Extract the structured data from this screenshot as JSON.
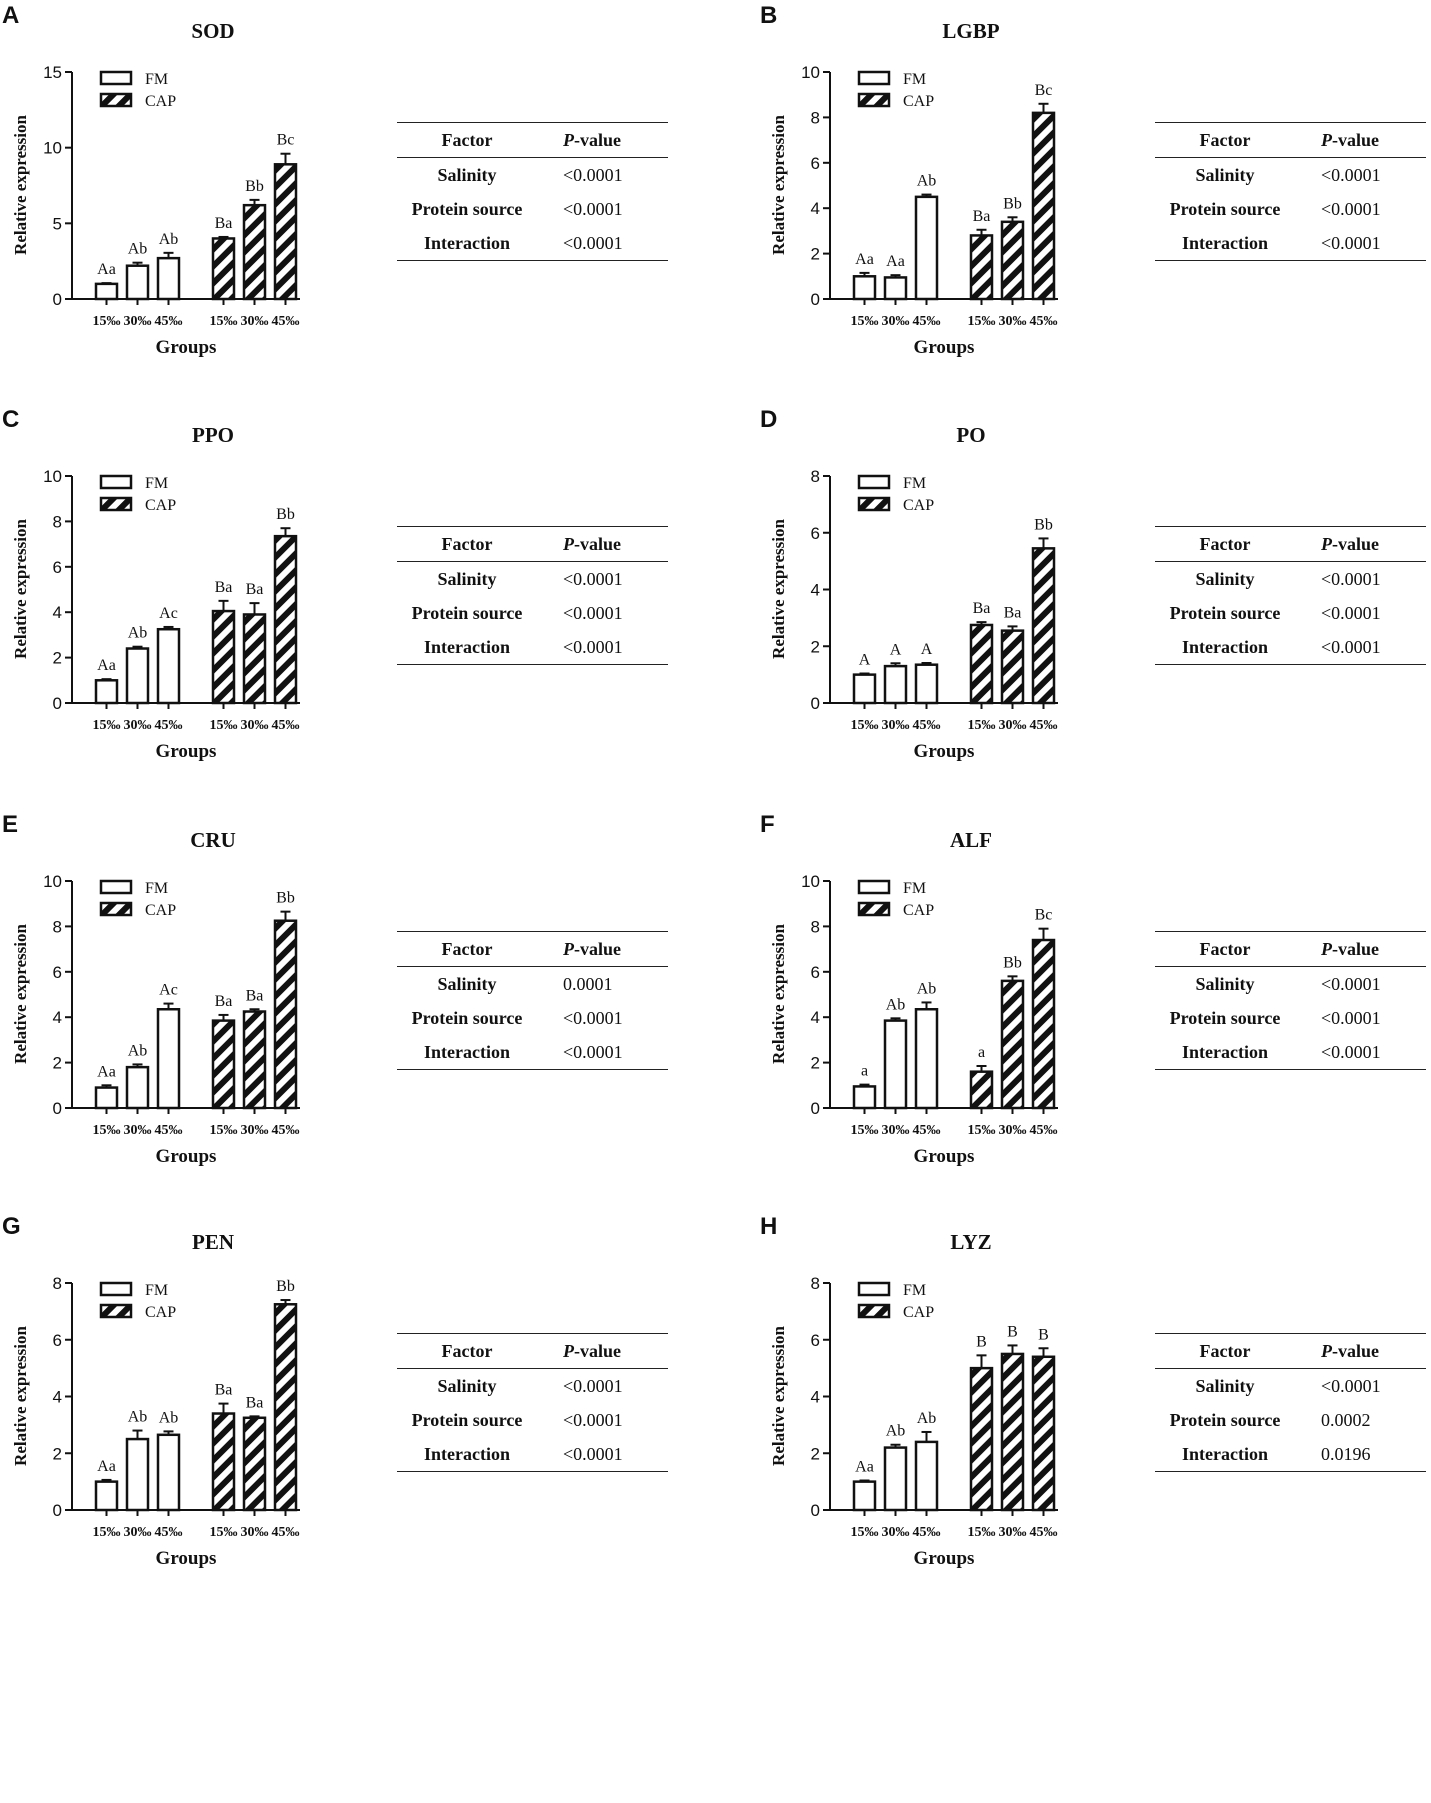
{
  "charts": [
    {
      "letter": "A",
      "title": "SOD",
      "ymax": 15,
      "yticks": [
        0,
        5,
        10,
        15
      ],
      "chart_data": {
        "type": "bar",
        "title": "SOD",
        "xlabel": "Groups",
        "ylabel": "Relative expression",
        "ylim": [
          0,
          15
        ],
        "categories": [
          "15‰",
          "30‰",
          "45‰"
        ],
        "series": [
          {
            "name": "FM",
            "values": [
              1.0,
              2.2,
              2.7
            ],
            "errors": [
              0.05,
              0.2,
              0.35
            ],
            "labels": [
              "Aa",
              "Ab",
              "Ab"
            ]
          },
          {
            "name": "CAP",
            "values": [
              4.0,
              6.2,
              8.9
            ],
            "errors": [
              0.1,
              0.35,
              0.7
            ],
            "labels": [
              "Ba",
              "Bb",
              "Bc"
            ]
          }
        ]
      },
      "table": {
        "h1": "Factor",
        "h2_italic": "P",
        "h2_rest": "-value",
        "rows": [
          {
            "factor": "Salinity",
            "p": "<0.0001"
          },
          {
            "factor": "Protein source",
            "p": "<0.0001"
          },
          {
            "factor": "Interaction",
            "p": "<0.0001"
          }
        ]
      }
    },
    {
      "letter": "B",
      "title": "LGBP",
      "ymax": 10,
      "yticks": [
        0,
        2,
        4,
        6,
        8,
        10
      ],
      "chart_data": {
        "type": "bar",
        "title": "LGBP",
        "xlabel": "Groups",
        "ylabel": "Relative expression",
        "ylim": [
          0,
          10
        ],
        "categories": [
          "15‰",
          "30‰",
          "45‰"
        ],
        "series": [
          {
            "name": "FM",
            "values": [
              1.0,
              0.95,
              4.5
            ],
            "errors": [
              0.15,
              0.1,
              0.1
            ],
            "labels": [
              "Aa",
              "Aa",
              "Ab"
            ]
          },
          {
            "name": "CAP",
            "values": [
              2.8,
              3.4,
              8.2
            ],
            "errors": [
              0.25,
              0.2,
              0.4
            ],
            "labels": [
              "Ba",
              "Bb",
              "Bc"
            ]
          }
        ]
      },
      "table": {
        "h1": "Factor",
        "h2_italic": "P",
        "h2_rest": "-value",
        "rows": [
          {
            "factor": "Salinity",
            "p": "<0.0001"
          },
          {
            "factor": "Protein source",
            "p": "<0.0001"
          },
          {
            "factor": "Interaction",
            "p": "<0.0001"
          }
        ]
      }
    },
    {
      "letter": "C",
      "title": "PPO",
      "ymax": 10,
      "yticks": [
        0,
        2,
        4,
        6,
        8,
        10
      ],
      "chart_data": {
        "type": "bar",
        "title": "PPO",
        "xlabel": "Groups",
        "ylabel": "Relative expression",
        "ylim": [
          0,
          10
        ],
        "categories": [
          "15‰",
          "30‰",
          "45‰"
        ],
        "series": [
          {
            "name": "FM",
            "values": [
              1.0,
              2.4,
              3.25
            ],
            "errors": [
              0.05,
              0.08,
              0.1
            ],
            "labels": [
              "Aa",
              "Ab",
              "Ac"
            ]
          },
          {
            "name": "CAP",
            "values": [
              4.05,
              3.9,
              7.35
            ],
            "errors": [
              0.45,
              0.5,
              0.35
            ],
            "labels": [
              "Ba",
              "Ba",
              "Bb"
            ]
          }
        ]
      },
      "table": {
        "h1": "Factor",
        "h2_italic": "P",
        "h2_rest": "-value",
        "rows": [
          {
            "factor": "Salinity",
            "p": "<0.0001"
          },
          {
            "factor": "Protein source",
            "p": "<0.0001"
          },
          {
            "factor": "Interaction",
            "p": "<0.0001"
          }
        ]
      }
    },
    {
      "letter": "D",
      "title": "PO",
      "ymax": 8,
      "yticks": [
        0,
        2,
        4,
        6,
        8
      ],
      "chart_data": {
        "type": "bar",
        "title": "PO",
        "xlabel": "Groups",
        "ylabel": "Relative expression",
        "ylim": [
          0,
          8
        ],
        "categories": [
          "15‰",
          "30‰",
          "45‰"
        ],
        "series": [
          {
            "name": "FM",
            "values": [
              1.0,
              1.3,
              1.35
            ],
            "errors": [
              0.04,
              0.1,
              0.06
            ],
            "labels": [
              "A",
              "A",
              "A"
            ]
          },
          {
            "name": "CAP",
            "values": [
              2.75,
              2.55,
              5.45
            ],
            "errors": [
              0.1,
              0.15,
              0.35
            ],
            "labels": [
              "Ba",
              "Ba",
              "Bb"
            ]
          }
        ]
      },
      "table": {
        "h1": "Factor",
        "h2_italic": "P",
        "h2_rest": "-value",
        "rows": [
          {
            "factor": "Salinity",
            "p": "<0.0001"
          },
          {
            "factor": "Protein source",
            "p": "<0.0001"
          },
          {
            "factor": "Interaction",
            "p": "<0.0001"
          }
        ]
      }
    },
    {
      "letter": "E",
      "title": "CRU",
      "ymax": 10,
      "yticks": [
        0,
        2,
        4,
        6,
        8,
        10
      ],
      "chart_data": {
        "type": "bar",
        "title": "CRU",
        "xlabel": "Groups",
        "ylabel": "Relative expression",
        "ylim": [
          0,
          10
        ],
        "categories": [
          "15‰",
          "30‰",
          "45‰"
        ],
        "series": [
          {
            "name": "FM",
            "values": [
              0.9,
              1.8,
              4.35
            ],
            "errors": [
              0.1,
              0.12,
              0.25
            ],
            "labels": [
              "Aa",
              "Ab",
              "Ac"
            ]
          },
          {
            "name": "CAP",
            "values": [
              3.85,
              4.25,
              8.25
            ],
            "errors": [
              0.25,
              0.1,
              0.4
            ],
            "labels": [
              "Ba",
              "Ba",
              "Bb"
            ]
          }
        ]
      },
      "table": {
        "h1": "Factor",
        "h2_italic": "P",
        "h2_rest": "-value",
        "rows": [
          {
            "factor": "Salinity",
            "p": "0.0001"
          },
          {
            "factor": "Protein source",
            "p": "<0.0001"
          },
          {
            "factor": "Interaction",
            "p": "<0.0001"
          }
        ]
      }
    },
    {
      "letter": "F",
      "title": "ALF",
      "ymax": 10,
      "yticks": [
        0,
        2,
        4,
        6,
        8,
        10
      ],
      "chart_data": {
        "type": "bar",
        "title": "ALF",
        "xlabel": "Groups",
        "ylabel": "Relative expression",
        "ylim": [
          0,
          10
        ],
        "categories": [
          "15‰",
          "30‰",
          "45‰"
        ],
        "series": [
          {
            "name": "FM",
            "values": [
              0.95,
              3.85,
              4.35
            ],
            "errors": [
              0.08,
              0.1,
              0.3
            ],
            "labels": [
              "a",
              "Ab",
              "Ab"
            ]
          },
          {
            "name": "CAP",
            "values": [
              1.6,
              5.6,
              7.4
            ],
            "errors": [
              0.25,
              0.2,
              0.5
            ],
            "labels": [
              "a",
              "Bb",
              "Bc"
            ]
          }
        ]
      },
      "table": {
        "h1": "Factor",
        "h2_italic": "P",
        "h2_rest": "-value",
        "rows": [
          {
            "factor": "Salinity",
            "p": "<0.0001"
          },
          {
            "factor": "Protein source",
            "p": "<0.0001"
          },
          {
            "factor": "Interaction",
            "p": "<0.0001"
          }
        ]
      }
    },
    {
      "letter": "G",
      "title": "PEN",
      "ymax": 8,
      "yticks": [
        0,
        2,
        4,
        6,
        8
      ],
      "chart_data": {
        "type": "bar",
        "title": "PEN",
        "xlabel": "Groups",
        "ylabel": "Relative expression",
        "ylim": [
          0,
          8
        ],
        "categories": [
          "15‰",
          "30‰",
          "45‰"
        ],
        "series": [
          {
            "name": "FM",
            "values": [
              1.0,
              2.5,
              2.65
            ],
            "errors": [
              0.06,
              0.3,
              0.12
            ],
            "labels": [
              "Aa",
              "Ab",
              "Ab"
            ]
          },
          {
            "name": "CAP",
            "values": [
              3.4,
              3.25,
              7.25
            ],
            "errors": [
              0.35,
              0.05,
              0.15
            ],
            "labels": [
              "Ba",
              "Ba",
              "Bb"
            ]
          }
        ]
      },
      "table": {
        "h1": "Factor",
        "h2_italic": "P",
        "h2_rest": "-value",
        "rows": [
          {
            "factor": "Salinity",
            "p": "<0.0001"
          },
          {
            "factor": "Protein source",
            "p": "<0.0001"
          },
          {
            "factor": "Interaction",
            "p": "<0.0001"
          }
        ]
      }
    },
    {
      "letter": "H",
      "title": "LYZ",
      "ymax": 8,
      "yticks": [
        0,
        2,
        4,
        6,
        8
      ],
      "chart_data": {
        "type": "bar",
        "title": "LYZ",
        "xlabel": "Groups",
        "ylabel": "Relative expression",
        "ylim": [
          0,
          8
        ],
        "categories": [
          "15‰",
          "30‰",
          "45‰"
        ],
        "series": [
          {
            "name": "FM",
            "values": [
              1.0,
              2.2,
              2.4
            ],
            "errors": [
              0.04,
              0.1,
              0.35
            ],
            "labels": [
              "Aa",
              "Ab",
              "Ab"
            ]
          },
          {
            "name": "CAP",
            "values": [
              5.0,
              5.5,
              5.4
            ],
            "errors": [
              0.45,
              0.3,
              0.3
            ],
            "labels": [
              "B",
              "B",
              "B"
            ]
          }
        ]
      },
      "table": {
        "h1": "Factor",
        "h2_italic": "P",
        "h2_rest": "-value",
        "rows": [
          {
            "factor": "Salinity",
            "p": "<0.0001"
          },
          {
            "factor": "Protein source",
            "p": "0.0002"
          },
          {
            "factor": "Interaction",
            "p": "0.0196"
          }
        ]
      }
    }
  ]
}
